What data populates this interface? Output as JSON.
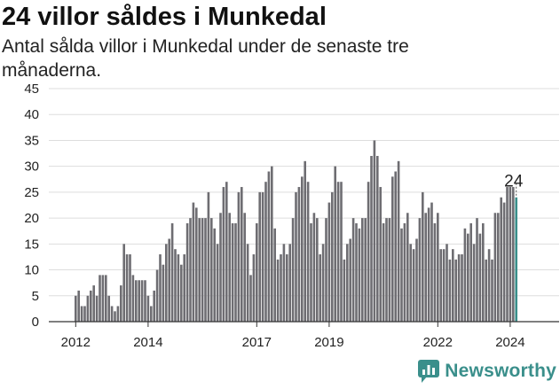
{
  "title": "24 villor såldes i Munkedal",
  "subtitle": "Antal sålda villor i Munkedal under de senaste tre månaderna.",
  "brand": {
    "name": "Newsworthy",
    "icon": "bar-chart-speech-icon",
    "color": "#3a8f8b"
  },
  "chart_data": {
    "type": "bar",
    "title": "24 villor såldes i Munkedal",
    "xlabel": "",
    "ylabel": "",
    "ylim": [
      0,
      45
    ],
    "yticks": [
      0,
      5,
      10,
      15,
      20,
      25,
      30,
      35,
      40,
      45
    ],
    "grid": true,
    "x_tick_labels": [
      {
        "label": "2012",
        "index": 0
      },
      {
        "label": "2014",
        "index": 24
      },
      {
        "label": "2017",
        "index": 60
      },
      {
        "label": "2019",
        "index": 84
      },
      {
        "label": "2022",
        "index": 120
      },
      {
        "label": "2024",
        "index": 144
      }
    ],
    "highlight_label": "24",
    "bar_color": "#6e6d72",
    "highlight_color": "#3a8f8b",
    "values": [
      5,
      6,
      3,
      3,
      5,
      6,
      7,
      5,
      9,
      9,
      9,
      5,
      3,
      2,
      3,
      7,
      15,
      13,
      13,
      9,
      8,
      8,
      8,
      8,
      5,
      3,
      6,
      10,
      13,
      11,
      15,
      16,
      19,
      14,
      13,
      11,
      13,
      19,
      20,
      23,
      22,
      20,
      20,
      20,
      25,
      20,
      18,
      15,
      21,
      26,
      27,
      21,
      19,
      19,
      25,
      26,
      21,
      15,
      9,
      13,
      19,
      25,
      25,
      27,
      29,
      30,
      18,
      12,
      13,
      15,
      13,
      15,
      20,
      25,
      26,
      28,
      31,
      27,
      19,
      21,
      20,
      13,
      15,
      20,
      23,
      25,
      30,
      27,
      27,
      12,
      15,
      16,
      20,
      19,
      18,
      20,
      20,
      27,
      32,
      35,
      32,
      26,
      19,
      20,
      20,
      28,
      29,
      31,
      18,
      19,
      21,
      15,
      14,
      16,
      20,
      25,
      21,
      22,
      23,
      19,
      21,
      14,
      14,
      15,
      12,
      14,
      12,
      13,
      13,
      18,
      17,
      19,
      15,
      20,
      17,
      19,
      12,
      14,
      12,
      21,
      21,
      24,
      23,
      26,
      26,
      26,
      24
    ]
  }
}
